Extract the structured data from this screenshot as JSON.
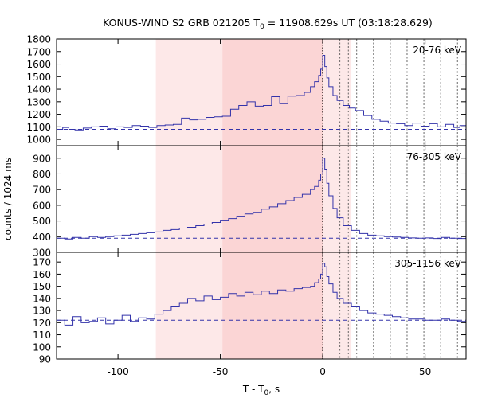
{
  "chart_data": {
    "type": "line",
    "title": {
      "prefix": "KONUS-WIND S2 GRB 021205 T",
      "sub": "0",
      "suffix": " = 11908.629s UT (03:18:28.629)"
    },
    "xlabel": {
      "prefix": "T - T",
      "sub": "0",
      "suffix": ", s"
    },
    "ylabel": "counts / 1024 ms",
    "xlim": [
      -130,
      70
    ],
    "xticks": [
      -100,
      -50,
      0,
      50
    ],
    "shaded_intervals": [
      {
        "x": [
          -81.5,
          -49
        ],
        "color": "#fde8e8"
      },
      {
        "x": [
          -49,
          0
        ],
        "color": "#fbd5d5"
      },
      {
        "x": [
          0,
          14
        ],
        "color": "#fde8e8"
      }
    ],
    "vertical_lines": [
      0,
      8.4,
      12.5,
      16.6,
      24.8,
      33.0,
      41.2,
      49.4,
      57.6,
      65.8
    ],
    "line_color": "#3333aa",
    "panels": [
      {
        "label": "20-76 keV",
        "ylim": [
          950,
          1800
        ],
        "yticks": [
          1000,
          1100,
          1200,
          1300,
          1400,
          1500,
          1600,
          1700,
          1800
        ],
        "background": 1080,
        "series": [
          {
            "x": -130,
            "y": 1080
          },
          {
            "x": -127,
            "y": 1095
          },
          {
            "x": -124,
            "y": 1080
          },
          {
            "x": -121,
            "y": 1075
          },
          {
            "x": -117,
            "y": 1090
          },
          {
            "x": -113,
            "y": 1100
          },
          {
            "x": -109,
            "y": 1105
          },
          {
            "x": -105,
            "y": 1085
          },
          {
            "x": -101,
            "y": 1100
          },
          {
            "x": -97,
            "y": 1095
          },
          {
            "x": -93,
            "y": 1110
          },
          {
            "x": -89,
            "y": 1105
          },
          {
            "x": -85,
            "y": 1095
          },
          {
            "x": -81,
            "y": 1110
          },
          {
            "x": -77,
            "y": 1115
          },
          {
            "x": -73,
            "y": 1120
          },
          {
            "x": -69,
            "y": 1170
          },
          {
            "x": -65,
            "y": 1155
          },
          {
            "x": -61,
            "y": 1160
          },
          {
            "x": -57,
            "y": 1175
          },
          {
            "x": -53,
            "y": 1180
          },
          {
            "x": -49,
            "y": 1185
          },
          {
            "x": -45,
            "y": 1240
          },
          {
            "x": -41,
            "y": 1270
          },
          {
            "x": -37,
            "y": 1300
          },
          {
            "x": -33,
            "y": 1265
          },
          {
            "x": -29,
            "y": 1270
          },
          {
            "x": -25,
            "y": 1340
          },
          {
            "x": -21,
            "y": 1285
          },
          {
            "x": -17,
            "y": 1345
          },
          {
            "x": -13,
            "y": 1350
          },
          {
            "x": -9,
            "y": 1375
          },
          {
            "x": -6,
            "y": 1420
          },
          {
            "x": -4,
            "y": 1460
          },
          {
            "x": -2,
            "y": 1510
          },
          {
            "x": -1,
            "y": 1560
          },
          {
            "x": 0,
            "y": 1670
          },
          {
            "x": 1,
            "y": 1580
          },
          {
            "x": 2,
            "y": 1490
          },
          {
            "x": 3,
            "y": 1420
          },
          {
            "x": 5,
            "y": 1350
          },
          {
            "x": 7,
            "y": 1310
          },
          {
            "x": 10,
            "y": 1270
          },
          {
            "x": 13,
            "y": 1250
          },
          {
            "x": 16,
            "y": 1230
          },
          {
            "x": 20,
            "y": 1190
          },
          {
            "x": 24,
            "y": 1160
          },
          {
            "x": 28,
            "y": 1145
          },
          {
            "x": 32,
            "y": 1130
          },
          {
            "x": 36,
            "y": 1125
          },
          {
            "x": 40,
            "y": 1110
          },
          {
            "x": 44,
            "y": 1130
          },
          {
            "x": 48,
            "y": 1105
          },
          {
            "x": 52,
            "y": 1125
          },
          {
            "x": 56,
            "y": 1100
          },
          {
            "x": 60,
            "y": 1120
          },
          {
            "x": 64,
            "y": 1095
          },
          {
            "x": 67,
            "y": 1110
          },
          {
            "x": 70,
            "y": 1100
          }
        ]
      },
      {
        "label": "76-305 keV",
        "ylim": [
          300,
          980
        ],
        "yticks": [
          300,
          400,
          500,
          600,
          700,
          800,
          900
        ],
        "background": 390,
        "series": [
          {
            "x": -130,
            "y": 390
          },
          {
            "x": -126,
            "y": 385
          },
          {
            "x": -122,
            "y": 395
          },
          {
            "x": -118,
            "y": 390
          },
          {
            "x": -114,
            "y": 400
          },
          {
            "x": -110,
            "y": 395
          },
          {
            "x": -106,
            "y": 400
          },
          {
            "x": -102,
            "y": 405
          },
          {
            "x": -98,
            "y": 410
          },
          {
            "x": -94,
            "y": 415
          },
          {
            "x": -90,
            "y": 420
          },
          {
            "x": -86,
            "y": 425
          },
          {
            "x": -82,
            "y": 430
          },
          {
            "x": -78,
            "y": 440
          },
          {
            "x": -74,
            "y": 445
          },
          {
            "x": -70,
            "y": 455
          },
          {
            "x": -66,
            "y": 460
          },
          {
            "x": -62,
            "y": 470
          },
          {
            "x": -58,
            "y": 480
          },
          {
            "x": -54,
            "y": 490
          },
          {
            "x": -50,
            "y": 505
          },
          {
            "x": -46,
            "y": 515
          },
          {
            "x": -42,
            "y": 530
          },
          {
            "x": -38,
            "y": 545
          },
          {
            "x": -34,
            "y": 555
          },
          {
            "x": -30,
            "y": 575
          },
          {
            "x": -26,
            "y": 590
          },
          {
            "x": -22,
            "y": 610
          },
          {
            "x": -18,
            "y": 630
          },
          {
            "x": -14,
            "y": 650
          },
          {
            "x": -10,
            "y": 670
          },
          {
            "x": -6,
            "y": 700
          },
          {
            "x": -4,
            "y": 720
          },
          {
            "x": -2,
            "y": 760
          },
          {
            "x": -1,
            "y": 800
          },
          {
            "x": 0,
            "y": 900
          },
          {
            "x": 1,
            "y": 830
          },
          {
            "x": 2,
            "y": 740
          },
          {
            "x": 3,
            "y": 660
          },
          {
            "x": 5,
            "y": 580
          },
          {
            "x": 7,
            "y": 520
          },
          {
            "x": 10,
            "y": 470
          },
          {
            "x": 14,
            "y": 440
          },
          {
            "x": 18,
            "y": 420
          },
          {
            "x": 22,
            "y": 410
          },
          {
            "x": 26,
            "y": 405
          },
          {
            "x": 30,
            "y": 400
          },
          {
            "x": 34,
            "y": 398
          },
          {
            "x": 38,
            "y": 395
          },
          {
            "x": 42,
            "y": 392
          },
          {
            "x": 46,
            "y": 390
          },
          {
            "x": 50,
            "y": 392
          },
          {
            "x": 54,
            "y": 388
          },
          {
            "x": 58,
            "y": 395
          },
          {
            "x": 62,
            "y": 390
          },
          {
            "x": 66,
            "y": 388
          },
          {
            "x": 70,
            "y": 390
          }
        ]
      },
      {
        "label": "305-1156 keV",
        "ylim": [
          90,
          178
        ],
        "yticks": [
          90,
          100,
          110,
          120,
          130,
          140,
          150,
          160,
          170
        ],
        "background": 122,
        "series": [
          {
            "x": -130,
            "y": 122
          },
          {
            "x": -126,
            "y": 118
          },
          {
            "x": -122,
            "y": 125
          },
          {
            "x": -118,
            "y": 120
          },
          {
            "x": -114,
            "y": 121
          },
          {
            "x": -110,
            "y": 124
          },
          {
            "x": -106,
            "y": 119
          },
          {
            "x": -102,
            "y": 122
          },
          {
            "x": -98,
            "y": 126
          },
          {
            "x": -94,
            "y": 121
          },
          {
            "x": -90,
            "y": 124
          },
          {
            "x": -86,
            "y": 123
          },
          {
            "x": -82,
            "y": 127
          },
          {
            "x": -78,
            "y": 130
          },
          {
            "x": -74,
            "y": 133
          },
          {
            "x": -70,
            "y": 136
          },
          {
            "x": -66,
            "y": 140
          },
          {
            "x": -62,
            "y": 138
          },
          {
            "x": -58,
            "y": 142
          },
          {
            "x": -54,
            "y": 139
          },
          {
            "x": -50,
            "y": 141
          },
          {
            "x": -46,
            "y": 144
          },
          {
            "x": -42,
            "y": 142
          },
          {
            "x": -38,
            "y": 145
          },
          {
            "x": -34,
            "y": 143
          },
          {
            "x": -30,
            "y": 146
          },
          {
            "x": -26,
            "y": 144
          },
          {
            "x": -22,
            "y": 147
          },
          {
            "x": -18,
            "y": 146
          },
          {
            "x": -14,
            "y": 148
          },
          {
            "x": -10,
            "y": 149
          },
          {
            "x": -6,
            "y": 150
          },
          {
            "x": -4,
            "y": 153
          },
          {
            "x": -2,
            "y": 156
          },
          {
            "x": -1,
            "y": 160
          },
          {
            "x": 0,
            "y": 169
          },
          {
            "x": 1,
            "y": 166
          },
          {
            "x": 2,
            "y": 158
          },
          {
            "x": 3,
            "y": 152
          },
          {
            "x": 5,
            "y": 145
          },
          {
            "x": 7,
            "y": 140
          },
          {
            "x": 10,
            "y": 136
          },
          {
            "x": 14,
            "y": 133
          },
          {
            "x": 18,
            "y": 130
          },
          {
            "x": 22,
            "y": 128
          },
          {
            "x": 26,
            "y": 127
          },
          {
            "x": 30,
            "y": 126
          },
          {
            "x": 34,
            "y": 125
          },
          {
            "x": 38,
            "y": 124
          },
          {
            "x": 42,
            "y": 123
          },
          {
            "x": 46,
            "y": 123
          },
          {
            "x": 50,
            "y": 122
          },
          {
            "x": 54,
            "y": 122
          },
          {
            "x": 58,
            "y": 123
          },
          {
            "x": 62,
            "y": 122
          },
          {
            "x": 66,
            "y": 121
          },
          {
            "x": 70,
            "y": 122
          }
        ]
      }
    ]
  }
}
